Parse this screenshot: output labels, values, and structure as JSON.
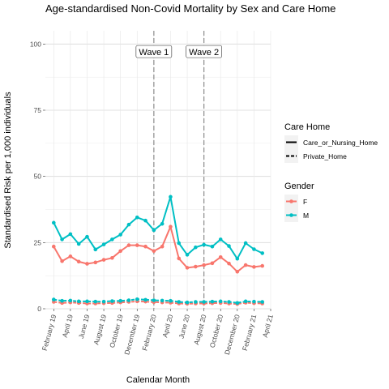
{
  "chart_data": {
    "type": "line",
    "title": "Age-standardised Non-Covid Mortality by Sex and Care Home",
    "xlabel": "Calendar Month",
    "ylabel": "Standardised Risk per 1,000 individuals",
    "ylim": [
      0,
      105
    ],
    "yticks": [
      0,
      25,
      50,
      75,
      100
    ],
    "x": [
      "2019-02",
      "2019-03",
      "2019-04",
      "2019-05",
      "2019-06",
      "2019-07",
      "2019-08",
      "2019-09",
      "2019-10",
      "2019-11",
      "2019-12",
      "2020-01",
      "2020-02",
      "2020-03",
      "2020-04",
      "2020-05",
      "2020-06",
      "2020-07",
      "2020-08",
      "2020-09",
      "2020-10",
      "2020-11",
      "2020-12",
      "2021-01",
      "2021-02",
      "2021-03"
    ],
    "xticks": [
      {
        "at": "2019-02",
        "label": "February 19"
      },
      {
        "at": "2019-04",
        "label": "April 19"
      },
      {
        "at": "2019-06",
        "label": "June 19"
      },
      {
        "at": "2019-08",
        "label": "August 19"
      },
      {
        "at": "2019-10",
        "label": "October 19"
      },
      {
        "at": "2019-12",
        "label": "December 19"
      },
      {
        "at": "2020-02",
        "label": "February 20"
      },
      {
        "at": "2020-04",
        "label": "April 20"
      },
      {
        "at": "2020-06",
        "label": "June 20"
      },
      {
        "at": "2020-08",
        "label": "August 20"
      },
      {
        "at": "2020-10",
        "label": "October 20"
      },
      {
        "at": "2020-12",
        "label": "December 20"
      },
      {
        "at": "2021-02",
        "label": "February 21"
      },
      {
        "at": "2021-04",
        "label": "April 21"
      }
    ],
    "x_range": [
      "2019-01",
      "2021-04"
    ],
    "grid": true,
    "annotations": [
      {
        "x": "2020-02",
        "label": "Wave 1"
      },
      {
        "x": "2020-08",
        "label": "Wave 2"
      }
    ],
    "series": [
      {
        "gender": "F",
        "care_home": "Care_or_Nursing_Home",
        "color": "#F8766D",
        "linetype": "solid",
        "values": [
          23.5,
          18,
          19.8,
          17.8,
          17,
          17.5,
          18.5,
          19.2,
          21.8,
          24,
          24,
          23.5,
          21.8,
          23.5,
          31,
          19,
          15.5,
          15.9,
          16.5,
          17.2,
          19.5,
          17.1,
          14,
          16.5,
          15.8,
          16.2
        ]
      },
      {
        "gender": "M",
        "care_home": "Care_or_Nursing_Home",
        "color": "#00BFC4",
        "linetype": "solid",
        "values": [
          32.5,
          26.2,
          28.2,
          24.5,
          27.2,
          22.4,
          24.3,
          26.2,
          28,
          31.8,
          34.5,
          33.3,
          29.7,
          32.1,
          42.3,
          24.8,
          20.4,
          23.2,
          24.2,
          23.5,
          26.2,
          23.7,
          18.9,
          24.8,
          22.5,
          21
        ]
      },
      {
        "gender": "F",
        "care_home": "Private_Home",
        "color": "#F8766D",
        "linetype": "dashed",
        "values": [
          2.6,
          2.2,
          2.4,
          2.2,
          2.0,
          2.0,
          2.1,
          2.2,
          2.4,
          2.6,
          2.8,
          2.7,
          2.5,
          2.4,
          2.3,
          2.0,
          1.9,
          2.0,
          2.0,
          2.1,
          2.2,
          2.0,
          1.8,
          2.3,
          2.1,
          2.0
        ]
      },
      {
        "gender": "M",
        "care_home": "Private_Home",
        "color": "#00BFC4",
        "linetype": "dashed",
        "values": [
          3.5,
          3.0,
          3.1,
          2.8,
          2.8,
          2.7,
          2.7,
          2.9,
          3.0,
          3.2,
          3.6,
          3.4,
          3.2,
          3.1,
          3.0,
          2.6,
          2.4,
          2.6,
          2.6,
          2.7,
          2.8,
          2.6,
          2.2,
          2.8,
          2.7,
          2.6
        ]
      }
    ],
    "legend": {
      "position": "right",
      "care_home": {
        "title": "Care Home",
        "items": [
          {
            "label": "Care_or_Nursing_Home",
            "linetype": "solid"
          },
          {
            "label": "Private_Home",
            "linetype": "dashed"
          }
        ]
      },
      "gender": {
        "title": "Gender",
        "items": [
          {
            "label": "F",
            "color": "#F8766D"
          },
          {
            "label": "M",
            "color": "#00BFC4"
          }
        ]
      }
    }
  }
}
